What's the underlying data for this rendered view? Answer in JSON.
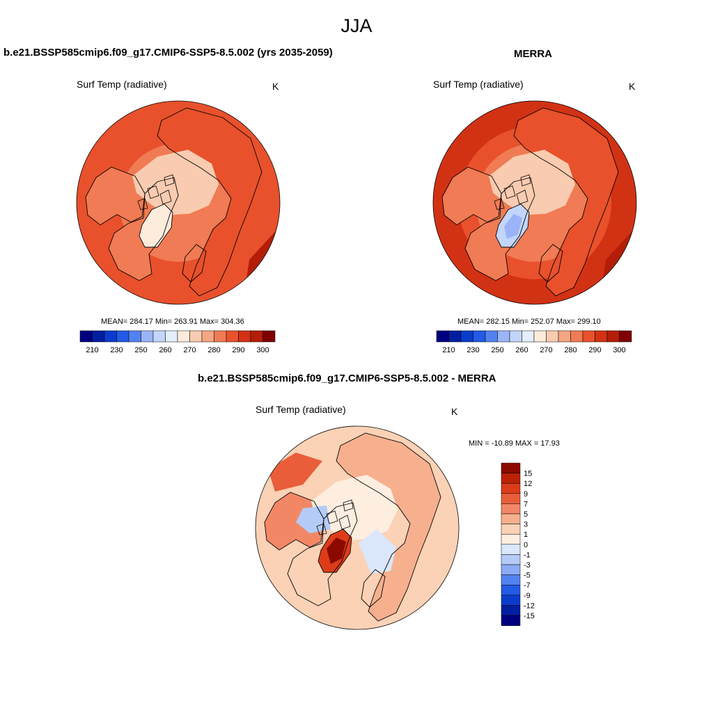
{
  "main_title": "JJA",
  "colors": {
    "abs_scale": [
      "#00007f",
      "#001ea0",
      "#0a3ccc",
      "#235ae6",
      "#5282f0",
      "#9bb4f7",
      "#c3d5fa",
      "#e4eefc",
      "#fdebdc",
      "#f9cbb0",
      "#f5a582",
      "#f07b54",
      "#e8512c",
      "#d23214",
      "#b41e08",
      "#7f0000"
    ],
    "diff_scale": [
      "#00007f",
      "#001ea0",
      "#0a3ccc",
      "#235ae6",
      "#5282f0",
      "#8cabf5",
      "#b4cbf8",
      "#dae7fc",
      "#fdeee0",
      "#fbd2b6",
      "#f7b08e",
      "#f28766",
      "#ea5d3a",
      "#dc3c1a",
      "#bb2205",
      "#8b0a00"
    ],
    "land_outline": "#000000"
  },
  "chart_data": [
    {
      "type": "heatmap",
      "title": "b.e21.BSSP585cmip6.f09_g17.CMIP6-SSP5-8.5.002 (yrs 2035-2059)",
      "variable": "Surf Temp (radiative)",
      "units": "K",
      "projection": "north-polar-stereographic",
      "stats_text": "MEAN= 284.17  Min= 263.91  Max= 304.36",
      "stats": {
        "mean": 284.17,
        "min": 263.91,
        "max": 304.36
      },
      "colorbar": {
        "orientation": "horizontal",
        "tick_labels": [
          "210",
          "230",
          "250",
          "260",
          "270",
          "280",
          "290",
          "300"
        ]
      }
    },
    {
      "type": "heatmap",
      "title": "MERRA",
      "variable": "Surf Temp (radiative)",
      "units": "K",
      "projection": "north-polar-stereographic",
      "stats_text": "MEAN= 282.15  Min= 252.07  Max= 299.10",
      "stats": {
        "mean": 282.15,
        "min": 252.07,
        "max": 299.1
      },
      "colorbar": {
        "orientation": "horizontal",
        "tick_labels": [
          "210",
          "230",
          "250",
          "260",
          "270",
          "280",
          "290",
          "300"
        ]
      }
    },
    {
      "type": "heatmap",
      "title": "b.e21.BSSP585cmip6.f09_g17.CMIP6-SSP5-8.5.002 - MERRA",
      "variable": "Surf Temp (radiative)",
      "units": "K",
      "projection": "north-polar-stereographic",
      "stats_text": "MIN = -10.89 MAX =  17.93",
      "stats": {
        "min": -10.89,
        "max": 17.93
      },
      "colorbar": {
        "orientation": "vertical",
        "tick_labels": [
          "15",
          "12",
          "9",
          "7",
          "5",
          "3",
          "1",
          "0",
          "-1",
          "-3",
          "-5",
          "-7",
          "-9",
          "-12",
          "-15"
        ]
      }
    }
  ]
}
